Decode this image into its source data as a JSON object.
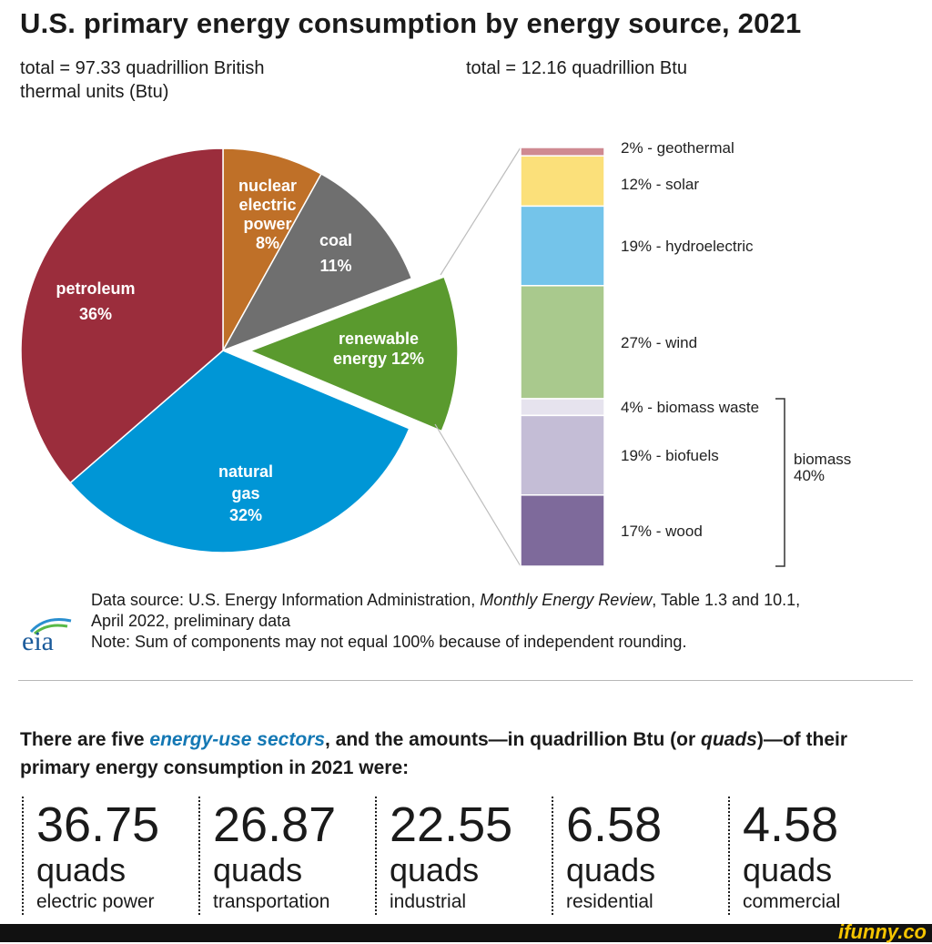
{
  "title": "U.S. primary energy consumption by energy source, 2021",
  "total_left": "total = 97.33 quadrillion British thermal units (Btu)",
  "total_right": "total = 12.16 quadrillion Btu",
  "colors": {
    "petroleum": "#9b2d3c",
    "nuclear": "#bf7028",
    "coal": "#6f6f6f",
    "renewable": "#5a9a2e",
    "natural_gas": "#0096d6",
    "geothermal": "#cf8a92",
    "solar": "#fbe07a",
    "hydroelectric": "#74c4ea",
    "wind": "#a9c98d",
    "biomass_waste": "#e6e3ee",
    "biofuels": "#c4bdd6",
    "wood": "#7e6a9b"
  },
  "chart_data": [
    {
      "type": "pie",
      "title": "U.S. primary energy consumption by energy source, 2021",
      "total": "total = 97.33 quadrillion British thermal units (Btu)",
      "slices": [
        {
          "name": "nuclear electric power",
          "value": 8,
          "label_lines": [
            "nuclear",
            "electric",
            "power",
            "8%"
          ]
        },
        {
          "name": "coal",
          "value": 11,
          "label_lines": [
            "coal",
            "11%"
          ]
        },
        {
          "name": "renewable energy",
          "value": 12,
          "label_lines": [
            "renewable",
            "energy 12%"
          ],
          "exploded": true
        },
        {
          "name": "natural gas",
          "value": 32,
          "label_lines": [
            "natural",
            "gas",
            "32%"
          ]
        },
        {
          "name": "petroleum",
          "value": 36,
          "label_lines": [
            "petroleum",
            "36%"
          ]
        }
      ]
    },
    {
      "type": "bar",
      "stacked": true,
      "total": "total = 12.16 quadrillion Btu",
      "segments_top_to_bottom": [
        {
          "name": "geothermal",
          "value": 2,
          "label": "2% - geothermal"
        },
        {
          "name": "solar",
          "value": 12,
          "label": "12% - solar"
        },
        {
          "name": "hydroelectric",
          "value": 19,
          "label": "19% - hydroelectric"
        },
        {
          "name": "wind",
          "value": 27,
          "label": "27% - wind"
        },
        {
          "name": "biomass waste",
          "value": 4,
          "label": "4% - biomass waste"
        },
        {
          "name": "biofuels",
          "value": 19,
          "label": "19% - biofuels"
        },
        {
          "name": "wood",
          "value": 17,
          "label": "17% - wood"
        }
      ],
      "group_bracket": {
        "label_line1": "biomass",
        "label_line2": "40%",
        "members": [
          "biomass waste",
          "biofuels",
          "wood"
        ]
      }
    }
  ],
  "source": {
    "prefix": "Data source: U.S. Energy Information Administration, ",
    "publication": "Monthly Energy Review",
    "suffix": ", Table 1.3 and 10.1,",
    "line2": "April 2022, preliminary data",
    "note": "Note: Sum of components may not equal 100% because of independent rounding."
  },
  "logo_text": "eia",
  "sectors_heading": {
    "part1": "There are five ",
    "link": "energy-use sectors",
    "part2": ", and the amounts—in quadrillion Btu (or ",
    "quads_it": "quads",
    "part3": ")—of their primary energy consumption in 2021 were:"
  },
  "sectors": [
    {
      "value": "36.75",
      "unit": "quads",
      "name": "electric power"
    },
    {
      "value": "26.87",
      "unit": "quads",
      "name": "transportation"
    },
    {
      "value": "22.55",
      "unit": "quads",
      "name": "industrial"
    },
    {
      "value": "6.58",
      "unit": "quads",
      "name": "residential"
    },
    {
      "value": "4.58",
      "unit": "quads",
      "name": "commercial"
    }
  ],
  "watermark": "ifunny.co"
}
